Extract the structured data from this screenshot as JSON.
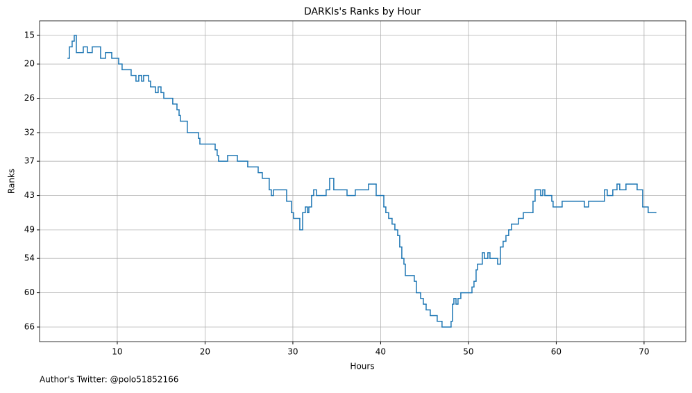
{
  "chart_data": {
    "type": "step",
    "title": "DARKIs's Ranks by Hour",
    "x_label": "Hours",
    "y_label": "Ranks",
    "footnote": "Author's Twitter: @polo51852166",
    "color": "#1f77b4",
    "grid": true,
    "xlim": [
      1.15,
      74.75
    ],
    "xticks": [
      10,
      20,
      30,
      40,
      50,
      60,
      70
    ],
    "ylim": [
      68.55,
      12.45
    ],
    "yticks": [
      15,
      20,
      26,
      32,
      37,
      43,
      49,
      54,
      60,
      66
    ],
    "x": [
      4.39,
      4.55,
      4.86,
      5.1,
      5.34,
      6.13,
      6.6,
      7.15,
      8.1,
      8.66,
      9.37,
      10.16,
      10.55,
      11.58,
      12.13,
      12.45,
      12.77,
      13.0,
      13.56,
      13.79,
      14.35,
      14.66,
      14.98,
      15.3,
      16.32,
      16.8,
      17.04,
      17.19,
      17.98,
      19.25,
      19.41,
      21.15,
      21.38,
      21.54,
      22.57,
      23.68,
      24.86,
      26.05,
      26.52,
      27.31,
      27.55,
      27.79,
      29.29,
      29.84,
      30.08,
      30.79,
      31.11,
      31.42,
      31.66,
      31.82,
      32.13,
      32.37,
      32.69,
      33.79,
      34.19,
      34.66,
      36.17,
      37.11,
      38.62,
      39.49,
      40.36,
      40.59,
      40.91,
      41.3,
      41.62,
      41.94,
      42.17,
      42.41,
      42.65,
      42.81,
      43.83,
      44.07,
      44.55,
      44.86,
      45.18,
      45.65,
      46.44,
      46.99,
      48.02,
      48.18,
      48.34,
      48.58,
      48.81,
      49.13,
      50.4,
      50.63,
      50.87,
      51.03,
      51.58,
      51.82,
      52.21,
      52.45,
      53.32,
      53.64,
      53.95,
      54.27,
      54.58,
      54.9,
      55.69,
      56.25,
      57.35,
      57.59,
      58.22,
      58.46,
      58.7,
      59.49,
      59.64,
      60.67,
      63.2,
      63.68,
      65.49,
      65.81,
      66.44,
      66.92,
      67.23,
      67.94,
      69.21,
      69.84,
      70.47,
      71.34
    ],
    "values": [
      19,
      17,
      16,
      15,
      18,
      17,
      18,
      17,
      19,
      18,
      19,
      20,
      21,
      22,
      23,
      22,
      23,
      22,
      23,
      24,
      25,
      24,
      25,
      26,
      27,
      28,
      29,
      30,
      32,
      33,
      34,
      35,
      36,
      37,
      36,
      37,
      38,
      39,
      40,
      42,
      43,
      42,
      44,
      46,
      47,
      49,
      46,
      45,
      46,
      45,
      43,
      42,
      43,
      42,
      40,
      42,
      43,
      42,
      41,
      43,
      45,
      46,
      47,
      48,
      49,
      50,
      52,
      54,
      55,
      57,
      58,
      60,
      61,
      62,
      63,
      64,
      65,
      66,
      65,
      62,
      61,
      62,
      61,
      60,
      59,
      58,
      56,
      55,
      53,
      54,
      53,
      54,
      55,
      52,
      51,
      50,
      49,
      48,
      47,
      46,
      44,
      42,
      43,
      42,
      43,
      44,
      45,
      44,
      45,
      44,
      42,
      43,
      42,
      41,
      42,
      41,
      42,
      45,
      46,
      46
    ]
  }
}
